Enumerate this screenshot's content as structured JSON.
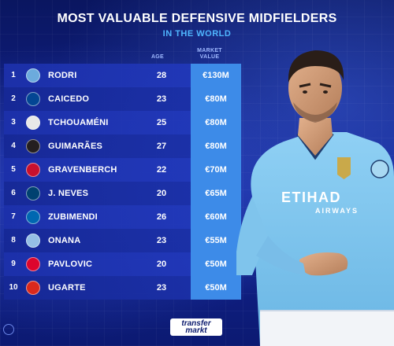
{
  "header": {
    "title": "MOST VALUABLE DEFENSIVE MIDFIELDERS",
    "subtitle": "IN THE WORLD"
  },
  "columns": {
    "age": "AGE",
    "market_value": "MARKET VALUE"
  },
  "rows": [
    {
      "rank": "1",
      "club": "manchester-city-crest",
      "crest_color": "#6cabdd",
      "name": "RODRI",
      "age": "28",
      "value": "€130M"
    },
    {
      "rank": "2",
      "club": "chelsea-crest",
      "crest_color": "#034694",
      "name": "CAICEDO",
      "age": "23",
      "value": "€80M"
    },
    {
      "rank": "3",
      "club": "real-madrid-crest",
      "crest_color": "#e8e8e8",
      "name": "TCHOUAMÉNI",
      "age": "25",
      "value": "€80M"
    },
    {
      "rank": "4",
      "club": "newcastle-crest",
      "crest_color": "#241f20",
      "name": "GUIMARÃES",
      "age": "27",
      "value": "€80M"
    },
    {
      "rank": "5",
      "club": "liverpool-crest",
      "crest_color": "#c8102e",
      "name": "GRAVENBERCH",
      "age": "22",
      "value": "€70M"
    },
    {
      "rank": "6",
      "club": "psg-crest",
      "crest_color": "#004170",
      "name": "J. NEVES",
      "age": "20",
      "value": "€65M"
    },
    {
      "rank": "7",
      "club": "real-sociedad-crest",
      "crest_color": "#0067b1",
      "name": "ZUBIMENDI",
      "age": "26",
      "value": "€60M"
    },
    {
      "rank": "8",
      "club": "aston-villa-crest",
      "crest_color": "#95bfe5",
      "name": "ONANA",
      "age": "23",
      "value": "€55M"
    },
    {
      "rank": "9",
      "club": "bayern-crest",
      "crest_color": "#dc052d",
      "name": "PAVLOVIC",
      "age": "20",
      "value": "€50M"
    },
    {
      "rank": "10",
      "club": "manchester-united-crest",
      "crest_color": "#da291c",
      "name": "UGARTE",
      "age": "23",
      "value": "€50M"
    }
  ],
  "player_photo": {
    "sponsor_text": "ETIHAD",
    "sponsor_sub": "AIRWAYS",
    "shirt_color": "#7fc4ec"
  },
  "logo": {
    "line1": "transfer",
    "line2": "markt"
  }
}
